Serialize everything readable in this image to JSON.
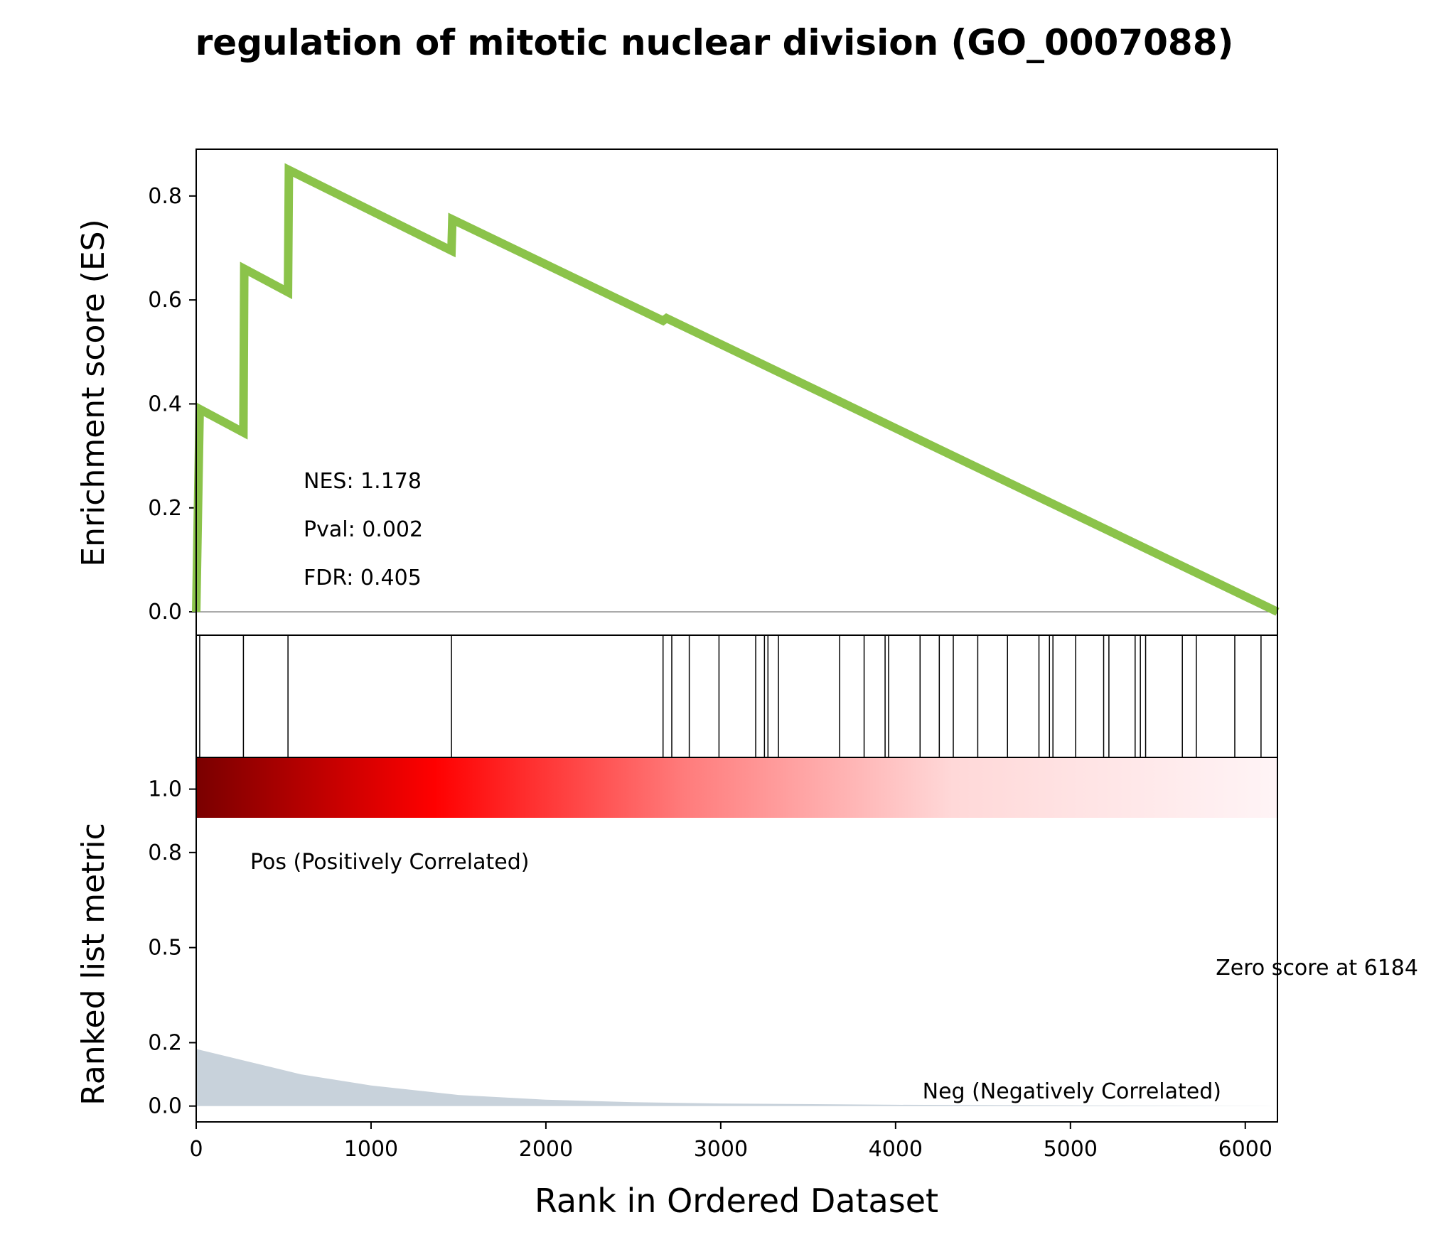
{
  "chart_data": {
    "type": "line",
    "title": "regulation of mitotic nuclear division (GO_0007088)",
    "xlabel": "Rank in Ordered Dataset",
    "xlim": [
      0,
      6184
    ],
    "x_ticks": [
      "0",
      "1000",
      "2000",
      "3000",
      "4000",
      "5000",
      "6000"
    ],
    "es_panel": {
      "ylabel": "Enrichment score (ES)",
      "ylim": [
        -0.045,
        0.89
      ],
      "y_ticks": [
        "0.0",
        "0.2",
        "0.4",
        "0.6",
        "0.8"
      ],
      "line_color": "#8bc34a",
      "zero_line": true,
      "points": [
        {
          "x": 0,
          "y": 0.0
        },
        {
          "x": 20,
          "y": 0.39
        },
        {
          "x": 270,
          "y": 0.345
        },
        {
          "x": 275,
          "y": 0.66
        },
        {
          "x": 525,
          "y": 0.615
        },
        {
          "x": 530,
          "y": 0.85
        },
        {
          "x": 1460,
          "y": 0.695
        },
        {
          "x": 1465,
          "y": 0.755
        },
        {
          "x": 2670,
          "y": 0.56
        },
        {
          "x": 2690,
          "y": 0.565
        },
        {
          "x": 6184,
          "y": 0.0
        }
      ],
      "stats": {
        "nes": "NES: 1.178",
        "pval": "Pval: 0.002",
        "fdr": "FDR: 0.405"
      }
    },
    "hits": [
      20,
      270,
      525,
      1460,
      2670,
      2720,
      2820,
      2990,
      3200,
      3250,
      3270,
      3330,
      3680,
      3820,
      3940,
      3960,
      4140,
      4250,
      4330,
      4470,
      4640,
      4820,
      4880,
      4900,
      5030,
      5190,
      5220,
      5370,
      5400,
      5430,
      5640,
      5720,
      5940,
      6090
    ],
    "ranked_panel": {
      "ylabel": "Ranked list metric",
      "ylim": [
        -0.05,
        1.1
      ],
      "y_ticks": [
        "0.0",
        "0.2",
        "0.5",
        "0.8",
        "1.0"
      ],
      "fill_color": "#c8d2db",
      "metric": [
        {
          "x": 0,
          "y": 0.18
        },
        {
          "x": 300,
          "y": 0.14
        },
        {
          "x": 600,
          "y": 0.1
        },
        {
          "x": 1000,
          "y": 0.065
        },
        {
          "x": 1500,
          "y": 0.035
        },
        {
          "x": 2000,
          "y": 0.02
        },
        {
          "x": 2500,
          "y": 0.012
        },
        {
          "x": 3000,
          "y": 0.008
        },
        {
          "x": 4000,
          "y": 0.004
        },
        {
          "x": 5000,
          "y": 0.002
        },
        {
          "x": 6184,
          "y": 0.0
        }
      ],
      "pos_label": "Pos (Positively Correlated)",
      "neg_label": "Neg (Negatively Correlated)",
      "zero_label": "Zero score at 6184",
      "pos_color": "#ff0000",
      "neg_color": "#0000ff"
    }
  }
}
